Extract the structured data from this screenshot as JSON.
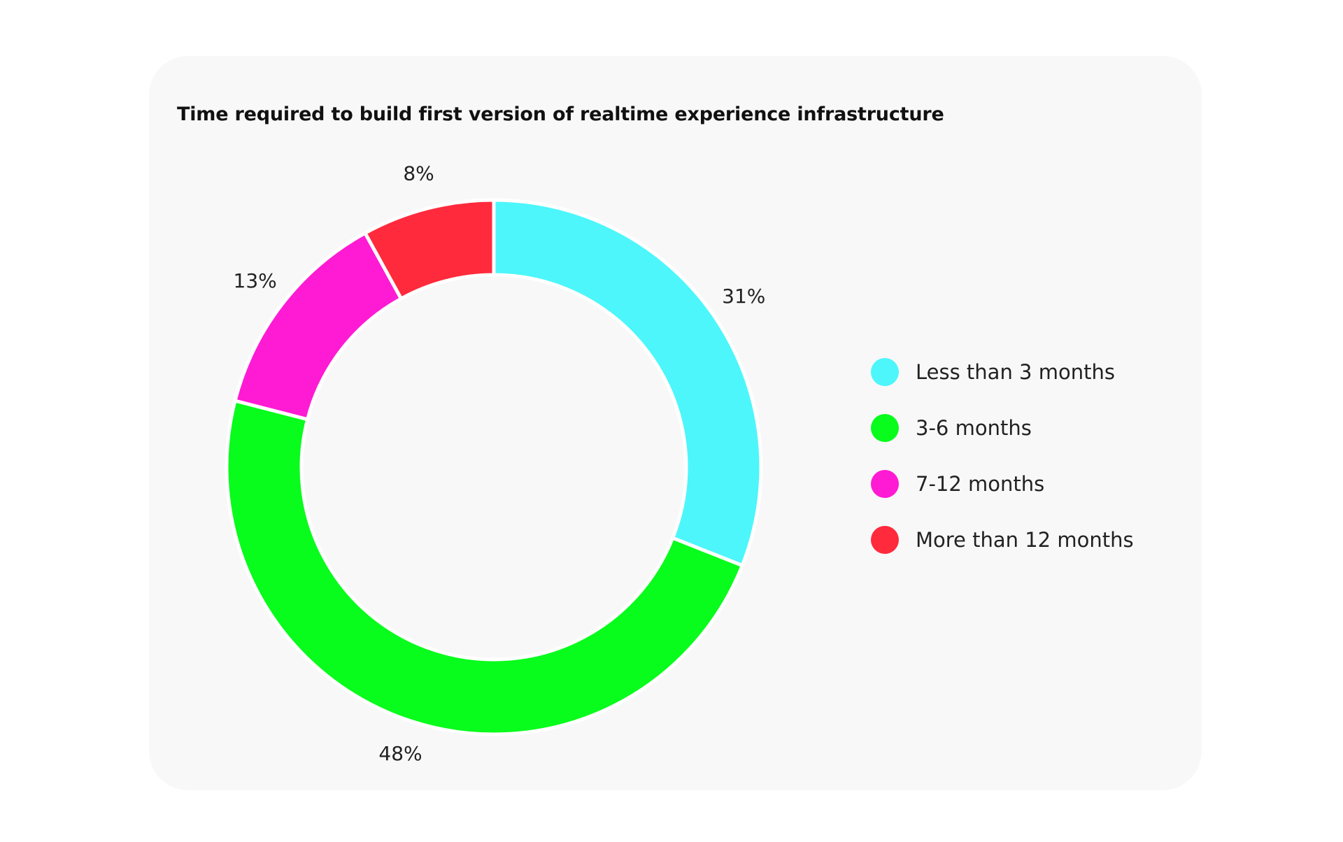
{
  "chart_data": {
    "type": "pie",
    "variant": "donut",
    "title": "Time required to build first version of realtime experience infrastructure",
    "categories": [
      "Less than 3 months",
      "3-6 months",
      "7-12 months",
      "More than 12 months"
    ],
    "values": [
      31,
      48,
      13,
      8
    ],
    "value_labels": [
      "31%",
      "48%",
      "13%",
      "8%"
    ],
    "colors": [
      "#4cf6fb",
      "#08fc1c",
      "#ff1ad4",
      "#ff2a3c"
    ],
    "legend_position": "right",
    "start_angle": "top, clockwise"
  }
}
